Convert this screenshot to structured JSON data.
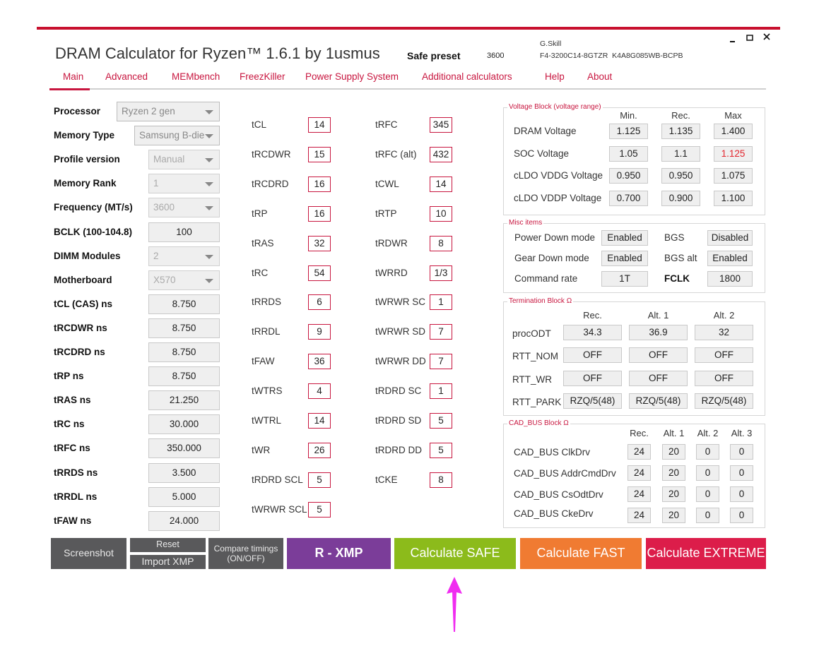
{
  "header": {
    "title": "DRAM Calculator for Ryzen™ 1.6.1 by 1usmus",
    "preset_label": "Safe preset",
    "preset_value": "3600",
    "kit_brand": "G.Skill",
    "kit_part": "F4-3200C14-8GTZR  K4A8G085WB-BCPB"
  },
  "tabs": [
    "Main",
    "Advanced",
    "MEMbench",
    "FreezKiller",
    "Power Supply System",
    "Additional calculators",
    "Help",
    "About"
  ],
  "main_fields": [
    {
      "label": "Processor",
      "value": "Ryzen 2 gen",
      "dropdown": true
    },
    {
      "label": "Memory Type",
      "value": "Samsung B-die",
      "dropdown": true
    },
    {
      "label": "Profile version",
      "value": "Manual",
      "dropdown": true
    },
    {
      "label": "Memory Rank",
      "value": "1",
      "dropdown": true
    },
    {
      "label": "Frequency (MT/s)",
      "value": "3600",
      "dropdown": true
    },
    {
      "label": "BCLK (100-104.8)",
      "value": "100",
      "dropdown": false
    },
    {
      "label": "DIMM Modules",
      "value": "2",
      "dropdown": true
    },
    {
      "label": "Motherboard",
      "value": "X570",
      "dropdown": true
    },
    {
      "label": "tCL (CAS) ns",
      "value": "8.750",
      "dropdown": false
    },
    {
      "label": "tRCDWR ns",
      "value": "8.750",
      "dropdown": false
    },
    {
      "label": "tRCDRD ns",
      "value": "8.750",
      "dropdown": false
    },
    {
      "label": "tRP ns",
      "value": "8.750",
      "dropdown": false
    },
    {
      "label": "tRAS ns",
      "value": "21.250",
      "dropdown": false
    },
    {
      "label": "tRC ns",
      "value": "30.000",
      "dropdown": false
    },
    {
      "label": "tRFC ns",
      "value": "350.000",
      "dropdown": false
    },
    {
      "label": "tRRDS ns",
      "value": "3.500",
      "dropdown": false
    },
    {
      "label": "tRRDL ns",
      "value": "5.000",
      "dropdown": false
    },
    {
      "label": "tFAW ns",
      "value": "24.000",
      "dropdown": false
    }
  ],
  "timings": {
    "column_1": [
      {
        "label": "tCL",
        "value": "14"
      },
      {
        "label": "tRCDWR",
        "value": "15"
      },
      {
        "label": "tRCDRD",
        "value": "16"
      },
      {
        "label": "tRP",
        "value": "16"
      },
      {
        "label": "tRAS",
        "value": "32"
      },
      {
        "label": "tRC",
        "value": "54"
      },
      {
        "label": "tRRDS",
        "value": "6"
      },
      {
        "label": "tRRDL",
        "value": "9"
      },
      {
        "label": "tFAW",
        "value": "36"
      },
      {
        "label": "tWTRS",
        "value": "4"
      },
      {
        "label": "tWTRL",
        "value": "14"
      },
      {
        "label": "tWR",
        "value": "26"
      },
      {
        "label": "tRDRD SCL",
        "value": "5"
      },
      {
        "label": "tWRWR SCL",
        "value": "5"
      }
    ],
    "column_2": [
      {
        "label": "tRFC",
        "value": "345"
      },
      {
        "label": "tRFC (alt)",
        "value": "432"
      },
      {
        "label": "tCWL",
        "value": "14"
      },
      {
        "label": "tRTP",
        "value": "10"
      },
      {
        "label": "tRDWR",
        "value": "8"
      },
      {
        "label": "tWRRD",
        "value": "1/3"
      },
      {
        "label": "tWRWR SC",
        "value": "1"
      },
      {
        "label": "tWRWR SD",
        "value": "7"
      },
      {
        "label": "tWRWR DD",
        "value": "7"
      },
      {
        "label": "tRDRD SC",
        "value": "1"
      },
      {
        "label": "tRDRD SD",
        "value": "5"
      },
      {
        "label": "tRDRD DD",
        "value": "5"
      },
      {
        "label": "tCKE",
        "value": "8"
      }
    ]
  },
  "voltage_block": {
    "title": "Voltage Block (voltage range)",
    "headers": [
      "Min.",
      "Rec.",
      "Max"
    ],
    "rows": [
      {
        "label": "DRAM Voltage",
        "values": [
          "1.125",
          "1.135",
          "1.400"
        ]
      },
      {
        "label": "SOC Voltage",
        "values": [
          "1.05",
          "1.1",
          "1.125"
        ],
        "max_color": "#e3262e"
      },
      {
        "label": "cLDO VDDG Voltage",
        "values": [
          "0.950",
          "0.950",
          "1.075"
        ]
      },
      {
        "label": "cLDO VDDP Voltage",
        "values": [
          "0.700",
          "0.900",
          "1.100"
        ]
      }
    ]
  },
  "misc_items": {
    "title": "Misc items",
    "rows": [
      {
        "label": "Power Down mode",
        "value": "Enabled",
        "label_2": "BGS",
        "value_2": "Disabled"
      },
      {
        "label": "Gear Down mode",
        "value": "Enabled",
        "label_2": "BGS alt",
        "value_2": "Enabled"
      },
      {
        "label": "Command rate",
        "value": "1T",
        "label_2": "FCLK",
        "value_2": "1800",
        "label_2_bold": true
      }
    ]
  },
  "termination_block": {
    "title": "Termination Block Ω",
    "headers": [
      "Rec.",
      "Alt. 1",
      "Alt. 2"
    ],
    "rows": [
      {
        "label": "procODT",
        "values": [
          "34.3",
          "36.9",
          "32"
        ]
      },
      {
        "label": "RTT_NOM",
        "values": [
          "OFF",
          "OFF",
          "OFF"
        ]
      },
      {
        "label": "RTT_WR",
        "values": [
          "OFF",
          "OFF",
          "OFF"
        ]
      },
      {
        "label": "RTT_PARK",
        "values": [
          "RZQ/5(48)",
          "RZQ/5(48)",
          "RZQ/5(48)"
        ]
      }
    ]
  },
  "cad_bus_block": {
    "title": "CAD_BUS Block Ω",
    "headers": [
      "Rec.",
      "Alt. 1",
      "Alt. 2",
      "Alt. 3"
    ],
    "rows": [
      {
        "label": "CAD_BUS ClkDrv",
        "values": [
          "24",
          "20",
          "0",
          "0"
        ]
      },
      {
        "label": "CAD_BUS AddrCmdDrv",
        "values": [
          "24",
          "20",
          "0",
          "0"
        ]
      },
      {
        "label": "CAD_BUS CsOdtDrv",
        "values": [
          "24",
          "20",
          "0",
          "0"
        ]
      },
      {
        "label": "CAD_BUS CkeDrv",
        "values": [
          "24",
          "20",
          "0",
          "0"
        ]
      }
    ]
  },
  "buttons": [
    {
      "label": "Screenshot",
      "color": "#59595b"
    },
    {
      "label": "Reset",
      "color": "#59595b"
    },
    {
      "label": "Import XMP",
      "color": "#59595b"
    },
    {
      "lines": [
        "Compare timings",
        "(ON/OFF)"
      ],
      "color": "#59595b"
    },
    {
      "label": "R - XMP",
      "color": "#7b3d99"
    },
    {
      "label": "Calculate SAFE",
      "color": "#8cbb1b"
    },
    {
      "label": "Calculate FAST",
      "color": "#f07b32"
    },
    {
      "label": "Calculate EXTREME",
      "color": "#dc1d4a"
    }
  ]
}
